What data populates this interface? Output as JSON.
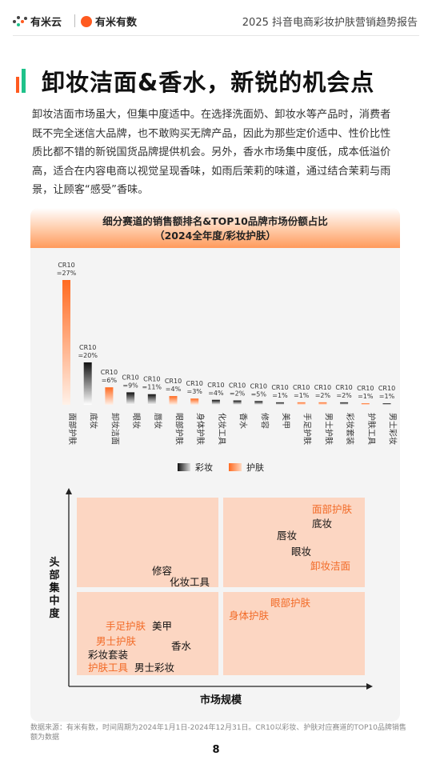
{
  "header": {
    "logo_left": "有米云",
    "logo_right": "有米有数",
    "report_title": "2025 抖音电商彩妆护肤营销趋势报告"
  },
  "page_title": "卸妆洁面&香水，新锐的机会点",
  "intro": "卸妆洁面市场虽大，但集中度适中。在选择洗面奶、卸妆水等产品时，消费者既不完全迷信大品牌，也不敢购买无牌产品，因此为那些定价适中、性价比性质比都不错的新锐国货品牌提供机会。另外，香水市场集中度低，成本低溢价高，适合在内容电商以视觉呈现香味，如雨后茉莉的味道，通过结合茉莉与雨景，让顾客“感受”香味。",
  "chart_title_line1": "细分赛道的销售额排名&TOP10品牌市场份额占比",
  "chart_title_line2": "（2024全年度/彩妆护肤）",
  "colors": {
    "makeup": "#111111",
    "skincare": "#ff7a35",
    "accent": "#f26a26"
  },
  "chart_data": {
    "type": "bar",
    "title": "细分赛道的销售额排名&TOP10品牌市场份额占比（2024全年度/彩妆护肤）",
    "categories": [
      "面部护肤",
      "底妆",
      "卸妆洁面",
      "眼妆",
      "唇妆",
      "眼部护肤",
      "身体护肤",
      "化妆工具",
      "香水",
      "修容",
      "美甲",
      "手足护肤",
      "男士护肤",
      "彩妆套装",
      "护肤工具",
      "男士彩妆"
    ],
    "group": [
      "skincare",
      "makeup",
      "skincare",
      "makeup",
      "makeup",
      "skincare",
      "skincare",
      "makeup",
      "makeup",
      "makeup",
      "makeup",
      "skincare",
      "skincare",
      "makeup",
      "skincare",
      "makeup"
    ],
    "bar_values": [
      100,
      34,
      14,
      10,
      8.5,
      7,
      5,
      4,
      3.5,
      3,
      2,
      2,
      2,
      2,
      1,
      0.5
    ],
    "data_labels": [
      "CR10\n=27%",
      "CR10\n=20%",
      "CR10\n=6%",
      "CR10\n=9%",
      "CR10\n=11%",
      "CR10\n=4%",
      "CR10\n=3%",
      "CR10\n=4%",
      "CR10\n=2%",
      "CR10\n=5%",
      "CR10\n=1%",
      "CR10\n=1%",
      "CR10\n=2%",
      "CR10\n=2%",
      "CR10\n=1%",
      "CR10\n=1%"
    ],
    "legend": [
      {
        "name": "彩妆",
        "key": "makeup"
      },
      {
        "name": "护肤",
        "key": "skincare"
      }
    ],
    "grid": false,
    "legend_position": "bottom-center"
  },
  "matrix": {
    "y_label": "头部集中度",
    "x_label": "市场规模",
    "items": [
      {
        "text": "面部护肤",
        "type": "skincare"
      },
      {
        "text": "底妆",
        "type": "makeup"
      },
      {
        "text": "唇妆",
        "type": "makeup"
      },
      {
        "text": "眼妆",
        "type": "makeup"
      },
      {
        "text": "卸妆洁面",
        "type": "skincare"
      },
      {
        "text": "修容",
        "type": "makeup"
      },
      {
        "text": "化妆工具",
        "type": "makeup"
      },
      {
        "text": "眼部护肤",
        "type": "skincare"
      },
      {
        "text": "身体护肤",
        "type": "skincare"
      },
      {
        "text": "手足护肤",
        "type": "skincare"
      },
      {
        "text": "美甲",
        "type": "makeup"
      },
      {
        "text": "男士护肤",
        "type": "skincare"
      },
      {
        "text": "香水",
        "type": "makeup"
      },
      {
        "text": "彩妆套装",
        "type": "makeup"
      },
      {
        "text": "护肤工具",
        "type": "skincare"
      },
      {
        "text": "男士彩妆",
        "type": "makeup"
      }
    ]
  },
  "footnote": "数据来源：有米有数，时间周期为2024年1月1日-2024年12月31日。CR10以彩妆、护肤对应赛道的TOP10品牌销售额为数据",
  "page_number": "8"
}
